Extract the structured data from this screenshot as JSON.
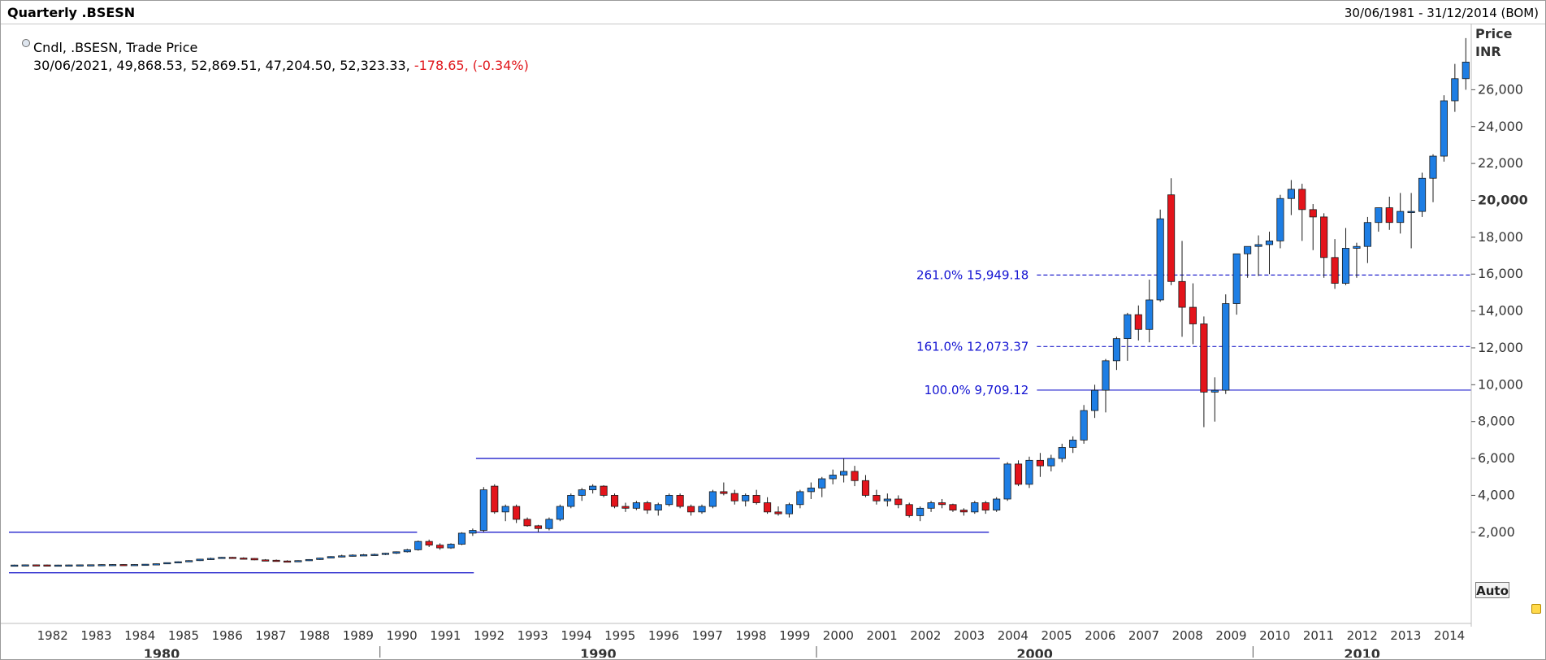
{
  "header": {
    "title": "Quarterly .BSESN",
    "date_range": "30/06/1981 - 31/12/2014 (BOM)"
  },
  "legend": {
    "line1": "Cndl, .BSESN, Trade Price",
    "line2": "30/06/2021, 49,868.53, 52,869.51, 47,204.50, 52,323.33,",
    "change": "-178.65, (-0.34%)"
  },
  "axis": {
    "price_label": "Price",
    "currency_label": "INR",
    "auto_label": "Auto"
  },
  "colors": {
    "up": "#1e7ee4",
    "down": "#e3141b",
    "line": "#2222cc",
    "fib_text": "#1414d2"
  },
  "chart_data": {
    "type": "candlestick",
    "title": "Quarterly .BSESN",
    "ylabel": "Price INR",
    "ylim": [
      -1800,
      29500
    ],
    "xlim": [
      1981.5,
      2015.0
    ],
    "yticks": [
      2000,
      4000,
      6000,
      8000,
      10000,
      12000,
      14000,
      16000,
      18000,
      20000,
      22000,
      24000,
      26000
    ],
    "ytick_labels": [
      "2,000",
      "4,000",
      "6,000",
      "8,000",
      "10,000",
      "12,000",
      "14,000",
      "16,000",
      "18,000",
      "20,000",
      "22,000",
      "24,000",
      "26,000"
    ],
    "xticks": [
      1982,
      1983,
      1984,
      1985,
      1986,
      1987,
      1988,
      1989,
      1990,
      1991,
      1992,
      1993,
      1994,
      1995,
      1996,
      1997,
      1998,
      1999,
      2000,
      2001,
      2002,
      2003,
      2004,
      2005,
      2006,
      2007,
      2008,
      2009,
      2010,
      2011,
      2012,
      2013,
      2014
    ],
    "xtick_labels": [
      "1982",
      "1983",
      "1984",
      "1985",
      "1986",
      "1987",
      "1988",
      "1989",
      "1990",
      "1991",
      "1992",
      "1993",
      "1994",
      "1995",
      "1996",
      "1997",
      "1998",
      "1999",
      "2000",
      "2001",
      "2002",
      "2003",
      "2004",
      "2005",
      "2006",
      "2007",
      "2008",
      "2009",
      "2010",
      "2011",
      "2012",
      "2013",
      "2014"
    ],
    "decades": [
      {
        "label": "1980",
        "x": 1985.0
      },
      {
        "label": "1990",
        "x": 1995.0
      },
      {
        "label": "2000",
        "x": 2005.0
      },
      {
        "label": "2010",
        "x": 2012.5
      }
    ],
    "decade_separators": [
      1990.0,
      2000.0,
      2010.0
    ],
    "grid": false,
    "candles": [
      [
        1981.5,
        200,
        240,
        180,
        220
      ],
      [
        1981.75,
        220,
        250,
        200,
        230
      ],
      [
        1982.0,
        230,
        250,
        210,
        225
      ],
      [
        1982.25,
        225,
        245,
        205,
        215
      ],
      [
        1982.5,
        215,
        235,
        200,
        220
      ],
      [
        1982.75,
        220,
        240,
        205,
        225
      ],
      [
        1983.0,
        225,
        245,
        210,
        230
      ],
      [
        1983.25,
        230,
        250,
        215,
        235
      ],
      [
        1983.5,
        235,
        260,
        225,
        245
      ],
      [
        1983.75,
        245,
        265,
        230,
        250
      ],
      [
        1984.0,
        250,
        265,
        235,
        245
      ],
      [
        1984.25,
        245,
        260,
        230,
        250
      ],
      [
        1984.5,
        250,
        275,
        240,
        265
      ],
      [
        1984.75,
        265,
        300,
        255,
        290
      ],
      [
        1985.0,
        290,
        360,
        280,
        350
      ],
      [
        1985.25,
        350,
        420,
        330,
        400
      ],
      [
        1985.5,
        400,
        480,
        380,
        460
      ],
      [
        1985.75,
        460,
        560,
        440,
        540
      ],
      [
        1986.0,
        540,
        620,
        500,
        580
      ],
      [
        1986.25,
        580,
        660,
        560,
        640
      ],
      [
        1986.5,
        640,
        660,
        560,
        600
      ],
      [
        1986.75,
        600,
        640,
        560,
        580
      ],
      [
        1987.0,
        580,
        600,
        480,
        500
      ],
      [
        1987.25,
        500,
        540,
        460,
        480
      ],
      [
        1987.5,
        480,
        520,
        420,
        440
      ],
      [
        1987.75,
        440,
        480,
        400,
        420
      ],
      [
        1988.0,
        420,
        480,
        400,
        460
      ],
      [
        1988.25,
        460,
        540,
        440,
        520
      ],
      [
        1988.5,
        520,
        620,
        500,
        600
      ],
      [
        1988.75,
        600,
        700,
        580,
        680
      ],
      [
        1989.0,
        680,
        780,
        640,
        720
      ],
      [
        1989.25,
        720,
        800,
        680,
        760
      ],
      [
        1989.5,
        760,
        820,
        720,
        780
      ],
      [
        1989.75,
        780,
        840,
        740,
        800
      ],
      [
        1990.0,
        800,
        880,
        760,
        860
      ],
      [
        1990.25,
        860,
        960,
        820,
        940
      ],
      [
        1990.5,
        940,
        1100,
        900,
        1050
      ],
      [
        1990.75,
        1050,
        1550,
        1000,
        1500
      ],
      [
        1991.0,
        1500,
        1600,
        1200,
        1300
      ],
      [
        1991.25,
        1300,
        1400,
        1050,
        1150
      ],
      [
        1991.5,
        1150,
        1400,
        1100,
        1350
      ],
      [
        1991.75,
        1350,
        2000,
        1300,
        1950
      ],
      [
        1992.0,
        1950,
        2200,
        1800,
        2100
      ],
      [
        1992.25,
        2100,
        4450,
        2000,
        4300
      ],
      [
        1992.5,
        4500,
        4600,
        3000,
        3100
      ],
      [
        1992.75,
        3100,
        3500,
        2600,
        3400
      ],
      [
        1993.0,
        3400,
        3500,
        2500,
        2700
      ],
      [
        1993.25,
        2700,
        2800,
        2300,
        2350
      ],
      [
        1993.5,
        2350,
        2400,
        2000,
        2200
      ],
      [
        1993.75,
        2200,
        2800,
        2100,
        2700
      ],
      [
        1994.0,
        2700,
        3500,
        2600,
        3400
      ],
      [
        1994.25,
        3400,
        4100,
        3300,
        4000
      ],
      [
        1994.5,
        4000,
        4400,
        3700,
        4300
      ],
      [
        1994.75,
        4300,
        4600,
        4100,
        4500
      ],
      [
        1995.0,
        4500,
        4550,
        3900,
        4000
      ],
      [
        1995.25,
        4000,
        4100,
        3300,
        3400
      ],
      [
        1995.5,
        3400,
        3600,
        3100,
        3300
      ],
      [
        1995.75,
        3300,
        3700,
        3200,
        3600
      ],
      [
        1996.0,
        3600,
        3700,
        3000,
        3200
      ],
      [
        1996.25,
        3200,
        3600,
        2900,
        3500
      ],
      [
        1996.5,
        3500,
        4100,
        3400,
        4000
      ],
      [
        1996.75,
        4000,
        4100,
        3300,
        3400
      ],
      [
        1997.0,
        3400,
        3500,
        2900,
        3100
      ],
      [
        1997.25,
        3100,
        3500,
        3000,
        3400
      ],
      [
        1997.5,
        3400,
        4300,
        3300,
        4200
      ],
      [
        1997.75,
        4200,
        4700,
        4000,
        4100
      ],
      [
        1998.0,
        4100,
        4300,
        3500,
        3700
      ],
      [
        1998.25,
        3700,
        4100,
        3400,
        4000
      ],
      [
        1998.5,
        4000,
        4300,
        3500,
        3600
      ],
      [
        1998.75,
        3600,
        3900,
        3000,
        3100
      ],
      [
        1999.0,
        3100,
        3400,
        2900,
        3000
      ],
      [
        1999.25,
        3000,
        3600,
        2800,
        3500
      ],
      [
        1999.5,
        3500,
        4300,
        3300,
        4200
      ],
      [
        1999.75,
        4200,
        4700,
        3800,
        4400
      ],
      [
        2000.0,
        4400,
        5000,
        3900,
        4900
      ],
      [
        2000.25,
        4900,
        5400,
        4600,
        5100
      ],
      [
        2000.5,
        5100,
        6000,
        4700,
        5300
      ],
      [
        2000.75,
        5300,
        5600,
        4500,
        4800
      ],
      [
        2001.0,
        4800,
        5100,
        3900,
        4000
      ],
      [
        2001.25,
        4000,
        4300,
        3500,
        3700
      ],
      [
        2001.5,
        3700,
        4100,
        3400,
        3800
      ],
      [
        2001.75,
        3800,
        4000,
        3300,
        3500
      ],
      [
        2002.0,
        3500,
        3600,
        2800,
        2900
      ],
      [
        2002.25,
        2900,
        3400,
        2600,
        3300
      ],
      [
        2002.5,
        3300,
        3700,
        3100,
        3600
      ],
      [
        2002.75,
        3600,
        3800,
        3300,
        3500
      ],
      [
        2003.0,
        3500,
        3550,
        3100,
        3200
      ],
      [
        2003.25,
        3200,
        3300,
        2900,
        3100
      ],
      [
        2003.5,
        3100,
        3700,
        3000,
        3600
      ],
      [
        2003.75,
        3600,
        3700,
        3000,
        3200
      ],
      [
        2004.0,
        3200,
        3900,
        3100,
        3800
      ],
      [
        2004.25,
        3800,
        5800,
        3700,
        5700
      ],
      [
        2004.5,
        5700,
        5900,
        4500,
        4600
      ],
      [
        2004.75,
        4600,
        6100,
        4400,
        5900
      ],
      [
        2005.0,
        5900,
        6300,
        5000,
        5600
      ],
      [
        2005.25,
        5600,
        6200,
        5300,
        6000
      ],
      [
        2005.5,
        6000,
        6800,
        5800,
        6600
      ],
      [
        2005.75,
        6600,
        7200,
        6300,
        7000
      ],
      [
        2006.0,
        7000,
        8900,
        6800,
        8600
      ],
      [
        2006.25,
        8600,
        10000,
        8200,
        9700
      ],
      [
        2006.5,
        9700,
        11400,
        8500,
        11300
      ],
      [
        2006.75,
        11300,
        12600,
        10800,
        12500
      ],
      [
        2007.0,
        12500,
        13900,
        11300,
        13800
      ],
      [
        2007.25,
        13800,
        14300,
        12400,
        13000
      ],
      [
        2007.5,
        13000,
        15700,
        12300,
        14600
      ],
      [
        2007.75,
        14600,
        19500,
        14500,
        19000
      ],
      [
        2008.0,
        20300,
        21200,
        15400,
        15600
      ],
      [
        2008.25,
        15600,
        17800,
        12600,
        14200
      ],
      [
        2008.5,
        14200,
        15500,
        12200,
        13300
      ],
      [
        2008.75,
        13300,
        13700,
        7700,
        9600
      ],
      [
        2009.0,
        9600,
        10400,
        8000,
        9700
      ],
      [
        2009.25,
        9700,
        14900,
        9500,
        14400
      ],
      [
        2009.5,
        14400,
        17000,
        13800,
        17100
      ],
      [
        2009.75,
        17100,
        17400,
        15800,
        17500
      ],
      [
        2010.0,
        17500,
        18100,
        15900,
        17600
      ],
      [
        2010.25,
        17600,
        18300,
        16000,
        17800
      ],
      [
        2010.5,
        17800,
        20300,
        17400,
        20100
      ],
      [
        2010.75,
        20100,
        21100,
        19200,
        20600
      ],
      [
        2011.0,
        20600,
        20900,
        17800,
        19500
      ],
      [
        2011.25,
        19500,
        19800,
        17300,
        19100
      ],
      [
        2011.5,
        19100,
        19300,
        15800,
        16900
      ],
      [
        2011.75,
        16900,
        17900,
        15200,
        15500
      ],
      [
        2012.0,
        15500,
        18500,
        15400,
        17400
      ],
      [
        2012.25,
        17400,
        17700,
        15800,
        17500
      ],
      [
        2012.5,
        17500,
        19100,
        16600,
        18800
      ],
      [
        2012.75,
        18800,
        19600,
        18300,
        19600
      ],
      [
        2013.0,
        19600,
        20200,
        18400,
        18800
      ],
      [
        2013.25,
        18800,
        20400,
        18200,
        19400
      ],
      [
        2013.5,
        19400,
        20400,
        17400,
        19400
      ],
      [
        2013.75,
        19400,
        21500,
        19100,
        21200
      ],
      [
        2014.0,
        21200,
        22500,
        19900,
        22400
      ],
      [
        2014.25,
        22400,
        25700,
        22100,
        25400
      ],
      [
        2014.5,
        25400,
        27400,
        24800,
        26600
      ],
      [
        2014.75,
        26600,
        28800,
        26000,
        27500
      ]
    ],
    "reference_lines": [
      {
        "x0": 1981.5,
        "x1": 1990.85,
        "y": 2000
      },
      {
        "x0": 1981.5,
        "x1": 1992.15,
        "y": -200
      },
      {
        "x0": 1992.2,
        "x1": 2004.2,
        "y": 6000
      },
      {
        "x0": 1992.2,
        "x1": 2003.95,
        "y": 2000
      }
    ],
    "fib_levels": [
      {
        "label": "261.0% 15,949.18",
        "value": 15949.18,
        "style": "dashed"
      },
      {
        "label": "161.0% 12,073.37",
        "value": 12073.37,
        "style": "dashed"
      },
      {
        "label": "100.0% 9,709.12",
        "value": 9709.12,
        "style": "solid"
      }
    ],
    "fib_line_start": 2005.05
  }
}
